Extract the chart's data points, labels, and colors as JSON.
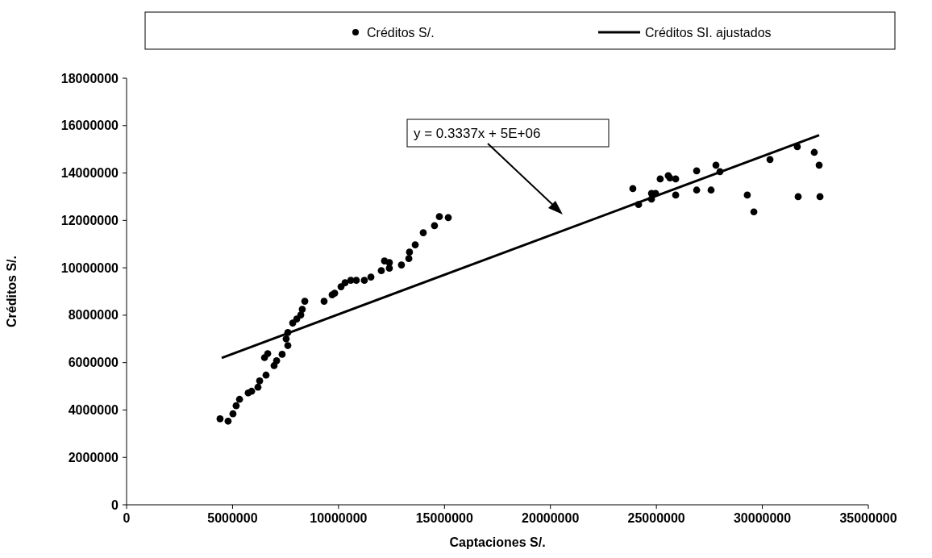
{
  "chart_data": {
    "type": "scatter",
    "xlabel": "Captaciones S/.",
    "ylabel": "Créditos S/.",
    "xlim": [
      0,
      35000000
    ],
    "xticks": [
      0,
      5000000,
      10000000,
      15000000,
      20000000,
      25000000,
      30000000,
      35000000
    ],
    "ylim": [
      0,
      18000000
    ],
    "yticks": [
      0,
      2000000,
      4000000,
      6000000,
      8000000,
      10000000,
      12000000,
      14000000,
      16000000,
      18000000
    ],
    "grid": false,
    "legend": "top",
    "marker": "circle",
    "annotations": [
      "y = 0.3337x + 5E+06"
    ],
    "series": [
      {
        "name": "Créditos S/.",
        "color": "#000000",
        "x": [
          4410000,
          4790000,
          5020000,
          5170000,
          5330000,
          5740000,
          5900000,
          6200000,
          6280000,
          6580000,
          6510000,
          6660000,
          6960000,
          7080000,
          7340000,
          7610000,
          7530000,
          7610000,
          7840000,
          8030000,
          8220000,
          8290000,
          8410000,
          9320000,
          9700000,
          9820000,
          10120000,
          10310000,
          10580000,
          10840000,
          11220000,
          11530000,
          12020000,
          12170000,
          12400000,
          12400000,
          12970000,
          13320000,
          13350000,
          13620000,
          14000000,
          14530000,
          14760000,
          15180000,
          23890000,
          24160000,
          24770000,
          24770000,
          24960000,
          25180000,
          25560000,
          25640000,
          25910000,
          25910000,
          26900000,
          26900000,
          27580000,
          27810000,
          28000000,
          29290000,
          29600000,
          30360000,
          31650000,
          31690000,
          32450000,
          32680000,
          32720000
        ],
        "values": [
          3630000,
          3530000,
          3840000,
          4180000,
          4450000,
          4720000,
          4790000,
          4960000,
          5230000,
          5470000,
          6210000,
          6380000,
          5870000,
          6080000,
          6350000,
          6720000,
          7000000,
          7270000,
          7670000,
          7840000,
          8010000,
          8250000,
          8590000,
          8590000,
          8860000,
          8930000,
          9200000,
          9370000,
          9470000,
          9470000,
          9470000,
          9610000,
          9880000,
          10290000,
          10220000,
          9980000,
          10120000,
          10390000,
          10660000,
          10970000,
          11480000,
          11780000,
          12160000,
          12120000,
          13340000,
          12670000,
          13140000,
          12900000,
          13140000,
          13750000,
          13890000,
          13790000,
          13750000,
          13070000,
          14090000,
          13280000,
          13280000,
          14330000,
          14060000,
          13070000,
          12360000,
          14570000,
          15110000,
          13000000,
          14870000,
          14330000,
          13000000
        ]
      },
      {
        "name": "Créditos SI. ajustados",
        "type": "line",
        "color": "#000000",
        "marker": "none",
        "x": [
          4490000,
          32680000
        ],
        "values": [
          6200000,
          15600000
        ]
      }
    ]
  }
}
